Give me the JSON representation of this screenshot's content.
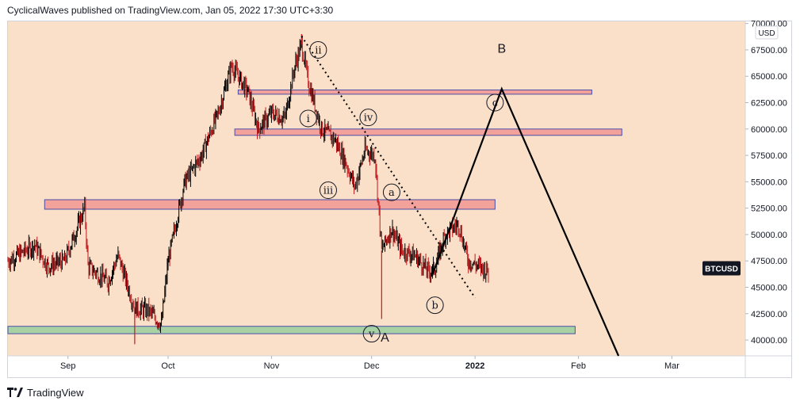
{
  "header": {
    "text": "CyclicalWaves published on TradingView.com, Jan 05, 2022 17:30 UTC+3:30"
  },
  "footer": {
    "brand": "TradingView",
    "logo_icon": "tradingview-logo-icon"
  },
  "colors": {
    "background": "#fae0c8",
    "candle": "#c0181d",
    "resistance_zone": "#f2a29a",
    "support_zone": "#a8d2a4",
    "zone_border": "#4a4ea8",
    "projection": "#000000",
    "label_bg": "#131722"
  },
  "chart_data": {
    "type": "candlestick",
    "symbol": "BTCUSD",
    "currency": "USD",
    "y_axis": {
      "ticks": [
        40000,
        42500,
        45000,
        47500,
        50000,
        52500,
        55000,
        57500,
        60000,
        62500,
        65000,
        67500,
        70000
      ],
      "tick_labels": [
        "40000.00",
        "42500.00",
        "45000.00",
        "47500.00",
        "50000.00",
        "52500.00",
        "55000.00",
        "57500.00",
        "60000.00",
        "62500.00",
        "65000.00",
        "67500.00",
        "70000.00"
      ],
      "range": [
        38500,
        70200
      ]
    },
    "x_axis": {
      "range": [
        "2021-08-14",
        "2022-03-23"
      ],
      "ticks": [
        {
          "date": "2021-09-01",
          "label": "Sep",
          "bold": false
        },
        {
          "date": "2021-10-01",
          "label": "Oct",
          "bold": false
        },
        {
          "date": "2021-11-01",
          "label": "Nov",
          "bold": false
        },
        {
          "date": "2021-12-01",
          "label": "Dec",
          "bold": false
        },
        {
          "date": "2022-01-01",
          "label": "2022",
          "bold": true
        },
        {
          "date": "2022-02-01",
          "label": "Feb",
          "bold": false
        },
        {
          "date": "2022-03-01",
          "label": "Mar",
          "bold": false
        }
      ]
    },
    "price_path": [
      [
        "2021-08-14",
        47500
      ],
      [
        "2021-08-22",
        49000
      ],
      [
        "2021-08-26",
        47000
      ],
      [
        "2021-08-31",
        47500
      ],
      [
        "2021-09-06",
        52500
      ],
      [
        "2021-09-07",
        47000
      ],
      [
        "2021-09-13",
        45500
      ],
      [
        "2021-09-16",
        48000
      ],
      [
        "2021-09-21",
        43000
      ],
      [
        "2021-09-25",
        42800
      ],
      [
        "2021-09-29",
        41500
      ],
      [
        "2021-10-01",
        47500
      ],
      [
        "2021-10-06",
        55000
      ],
      [
        "2021-10-11",
        57500
      ],
      [
        "2021-10-16",
        61500
      ],
      [
        "2021-10-20",
        66000
      ],
      [
        "2021-10-25",
        63500
      ],
      [
        "2021-10-28",
        60000
      ],
      [
        "2021-11-01",
        61500
      ],
      [
        "2021-11-05",
        61000
      ],
      [
        "2021-11-08",
        66000
      ],
      [
        "2021-11-10",
        68000
      ],
      [
        "2021-11-12",
        64500
      ],
      [
        "2021-11-16",
        60000
      ],
      [
        "2021-11-20",
        59000
      ],
      [
        "2021-11-23",
        57000
      ],
      [
        "2021-11-26",
        54500
      ],
      [
        "2021-11-29",
        58000
      ],
      [
        "2021-12-02",
        57500
      ],
      [
        "2021-12-04",
        48500
      ],
      [
        "2021-12-07",
        50500
      ],
      [
        "2021-12-10",
        48500
      ],
      [
        "2021-12-14",
        48000
      ],
      [
        "2021-12-18",
        46500
      ],
      [
        "2021-12-20",
        46800
      ],
      [
        "2021-12-23",
        50000
      ],
      [
        "2021-12-27",
        51000
      ],
      [
        "2021-12-30",
        47500
      ],
      [
        "2022-01-02",
        47000
      ],
      [
        "2022-01-05",
        46500
      ]
    ],
    "wicks": [
      {
        "date": "2021-12-04",
        "low": 42000
      },
      {
        "date": "2021-09-21",
        "low": 39600
      },
      {
        "date": "2021-11-10",
        "high": 69000
      }
    ],
    "zones": [
      {
        "name": "zone-top",
        "from": "2021-10-22",
        "to": "2022-02-05",
        "low": 63300,
        "high": 63700,
        "fill": "resistance_zone"
      },
      {
        "name": "zone-upper",
        "from": "2021-10-21",
        "to": "2022-02-14",
        "low": 59400,
        "high": 60000,
        "fill": "resistance_zone"
      },
      {
        "name": "zone-middle",
        "from": "2021-08-25",
        "to": "2022-01-07",
        "low": 52400,
        "high": 53300,
        "fill": "resistance_zone"
      },
      {
        "name": "zone-support",
        "from": "2021-08-14",
        "to": "2022-01-31",
        "low": 40600,
        "high": 41300,
        "fill": "support_zone"
      }
    ],
    "trendlines": [
      {
        "name": "dotted-trendline",
        "style": "dotted",
        "from": [
          "2021-11-10",
          68800
        ],
        "to": [
          "2022-01-01",
          44000
        ]
      }
    ],
    "projection": [
      [
        "2021-12-19",
        46000
      ],
      [
        "2022-01-09",
        63800
      ],
      [
        "2022-02-13",
        38500
      ]
    ],
    "wave_labels": [
      {
        "text": "ii",
        "date": "2021-11-15",
        "value": 67500,
        "circled": true
      },
      {
        "text": "i",
        "date": "2021-11-12",
        "value": 61000,
        "circled": true
      },
      {
        "text": "iv",
        "date": "2021-11-30",
        "value": 61100,
        "circled": true
      },
      {
        "text": "iii",
        "date": "2021-11-18",
        "value": 54200,
        "circled": true
      },
      {
        "text": "a",
        "date": "2021-12-07",
        "value": 54000,
        "circled": true
      },
      {
        "text": "b",
        "date": "2021-12-20",
        "value": 43300,
        "circled": true
      },
      {
        "text": "c",
        "date": "2022-01-07",
        "value": 62500,
        "circled": true
      },
      {
        "text": "v",
        "date": "2021-12-01",
        "value": 40600,
        "circled": true
      },
      {
        "text": "A",
        "date": "2021-12-05",
        "value": 40300,
        "circled": false
      },
      {
        "text": "B",
        "date": "2022-01-09",
        "value": 67700,
        "circled": false
      }
    ],
    "last_price_label": "BTCUSD",
    "last_price_value": 46800
  }
}
